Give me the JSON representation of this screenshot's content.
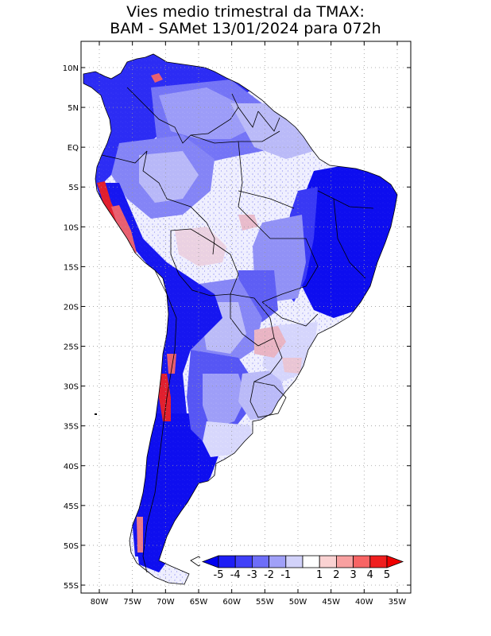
{
  "title": {
    "line1": "Vies medio trimestral da TMAX:",
    "line2": "BAM - SAMet 13/01/2024  para 072h"
  },
  "map": {
    "region": "South America",
    "projection": "lat-lon",
    "lon_range": [
      -85,
      -35
    ],
    "lat_range": [
      -56,
      12
    ],
    "grid": "dotted",
    "lat_ticks": [
      "10N",
      "5N",
      "EQ",
      "5S",
      "10S",
      "15S",
      "20S",
      "25S",
      "30S",
      "35S",
      "40S",
      "45S",
      "50S",
      "55S"
    ],
    "lat_values": [
      10,
      5,
      0,
      -5,
      -10,
      -15,
      -20,
      -25,
      -30,
      -35,
      -40,
      -45,
      -50,
      -55
    ],
    "lon_ticks": [
      "80W",
      "75W",
      "70W",
      "65W",
      "60W",
      "55W",
      "50W",
      "45W",
      "40W",
      "35W"
    ],
    "lon_values": [
      -80,
      -75,
      -70,
      -65,
      -60,
      -55,
      -50,
      -45,
      -40,
      -35
    ]
  },
  "colorbar": {
    "placement": "bottom-right inside map",
    "labels": [
      "-5",
      "-4",
      "-3",
      "-2",
      "-1",
      "1",
      "2",
      "3",
      "4",
      "5"
    ],
    "colors": [
      "#1e1ef5",
      "#4040f8",
      "#6e6ef8",
      "#a0a0f8",
      "#d2d2fa",
      "#ffffff",
      "#fad2d2",
      "#f8a0a0",
      "#f86464",
      "#f01e1e"
    ],
    "end_left": "#0000f0",
    "end_right": "#f00000"
  },
  "chart_data": {
    "type": "heatmap",
    "variable": "TMAX bias",
    "notes": "Spatial field of seasonal mean TMAX bias over South America",
    "regions": [
      {
        "name": "Northeast Brazil",
        "bias_class": "-5"
      },
      {
        "name": "Patagonia / southern Andes",
        "bias_class": "-5"
      },
      {
        "name": "Colombia / Venezuela north",
        "bias_class": "-4"
      },
      {
        "name": "Central Amazon",
        "bias_class": "-1 to 1"
      },
      {
        "name": "Peru coastal Andes",
        "bias_class": "4 to 5"
      },
      {
        "name": "Central Andes Chile/Argentina",
        "bias_class": "4 to 5"
      },
      {
        "name": "Central Bolivia",
        "bias_class": "1 to 2"
      },
      {
        "name": "Southern Brazil / Paraguay",
        "bias_class": "1 to 2"
      }
    ]
  }
}
